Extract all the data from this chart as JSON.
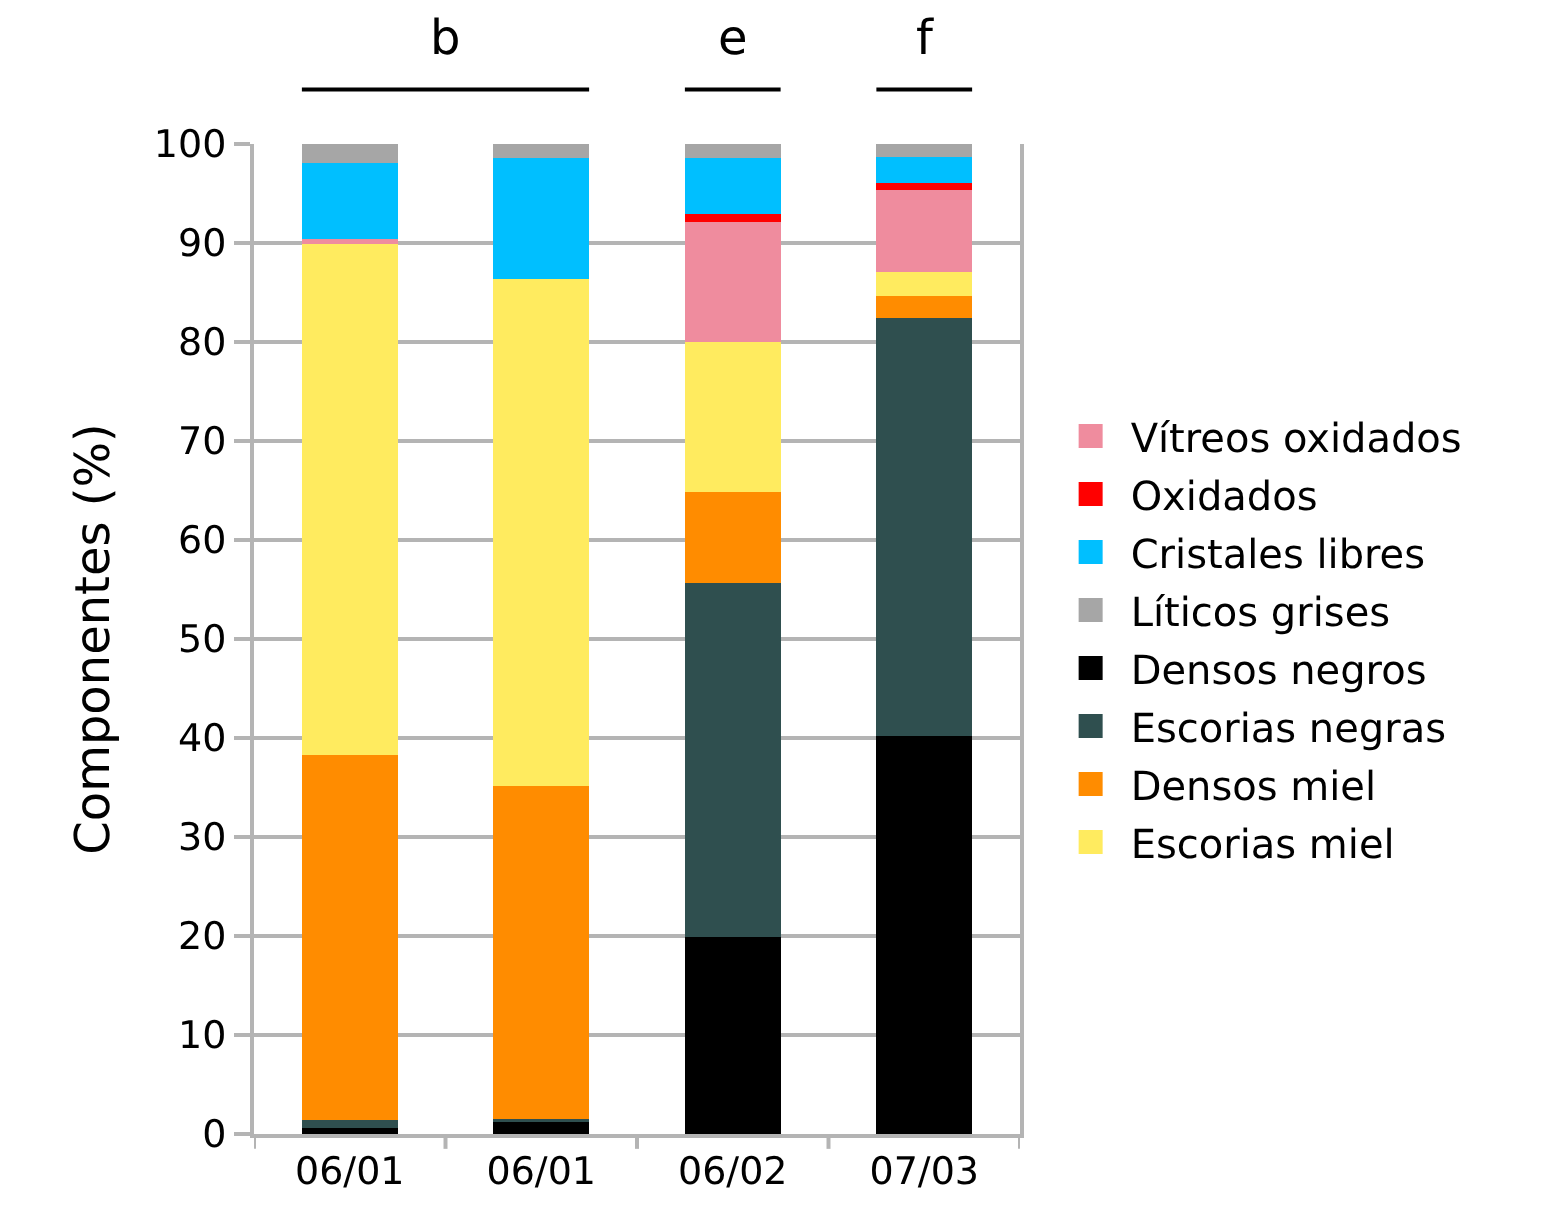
{
  "chart_data": {
    "type": "bar",
    "stacked": true,
    "ylabel": "Componentes (%)",
    "categories": [
      "06/01",
      "06/01",
      "06/02",
      "07/03"
    ],
    "series": [
      {
        "name": "Densos negros",
        "color": "#000000",
        "values": [
          0.6,
          1.3,
          19.9,
          40.2
        ]
      },
      {
        "name": "Escorias negras",
        "color": "#2f4f4f",
        "values": [
          0.8,
          0.2,
          35.8,
          42.2
        ]
      },
      {
        "name": "Densos miel",
        "color": "#ff8c00",
        "values": [
          36.9,
          33.7,
          9.1,
          2.2
        ]
      },
      {
        "name": "Escorias miel",
        "color": "#ffeb5f",
        "values": [
          51.8,
          51.2,
          15.2,
          2.5
        ]
      },
      {
        "name": "Vítreos oxidados",
        "color": "#ef8c9e",
        "values": [
          0.3,
          0,
          12.1,
          8.3
        ]
      },
      {
        "name": "Oxidados",
        "color": "#ff0000",
        "values": [
          0,
          0,
          0.8,
          0.7
        ]
      },
      {
        "name": "Cristales libres",
        "color": "#00bfff",
        "values": [
          7.7,
          12.2,
          5.7,
          2.6
        ]
      },
      {
        "name": "Líticos grises",
        "color": "#a6a6a6",
        "values": [
          1.9,
          1.4,
          1.4,
          1.3
        ]
      }
    ],
    "ylim": [
      0,
      100
    ],
    "yticks": [
      0,
      10,
      20,
      30,
      40,
      50,
      60,
      70,
      80,
      90,
      100
    ],
    "grid": "y",
    "legend": "right",
    "annotations": [
      "b",
      "e",
      "f"
    ]
  }
}
